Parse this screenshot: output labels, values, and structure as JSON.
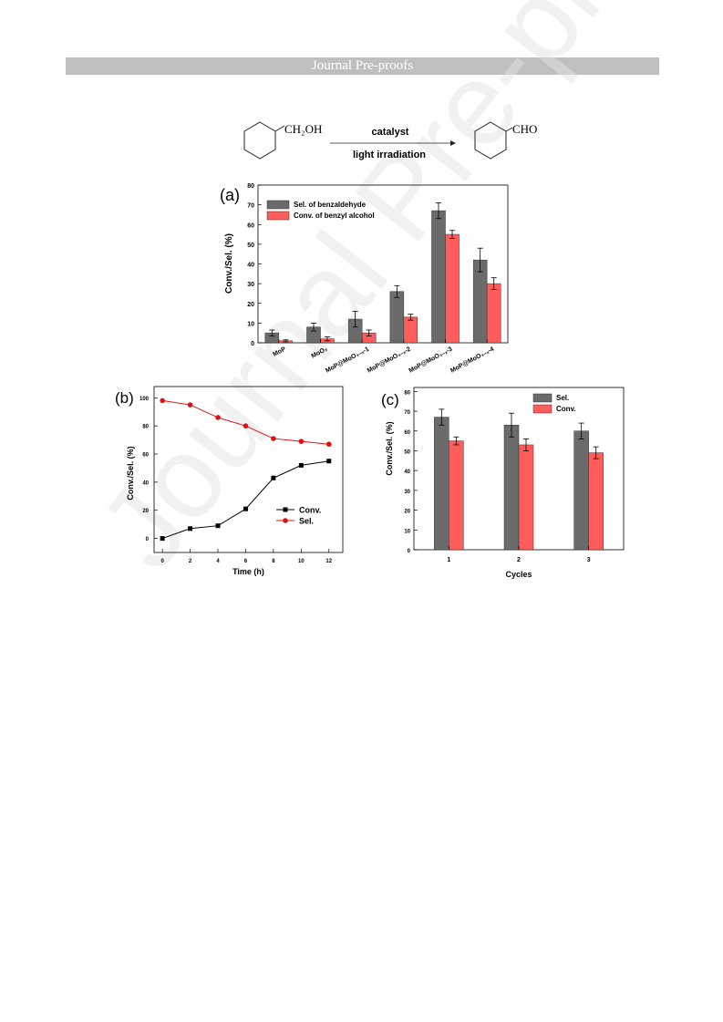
{
  "header": {
    "banner_text": "Journal Pre-proofs"
  },
  "watermark": {
    "text": "Journal Pre-proofs"
  },
  "scheme": {
    "reactant_group": "CH₂OH",
    "product_group": "CHO",
    "arrow_top_label": "catalyst",
    "arrow_bottom_label": "light irradiation"
  },
  "colors": {
    "gray_bar": "#6b6b6b",
    "red_bar": "#ff5c5c",
    "red_line": "#e01010",
    "black_line": "#000000"
  },
  "chart_data": [
    {
      "panel_label": "(a)",
      "type": "bar",
      "categories": [
        "MoP",
        "MoO₃",
        "MoP@MoO₃₋ₓ-1",
        "MoP@MoO₃₋ₓ-2",
        "MoP@MoO₃₋ₓ-3",
        "MoP@MoO₃₋ₓ-4"
      ],
      "series": [
        {
          "name": "Sel. of benzaldehyde",
          "values": [
            5,
            8,
            12,
            26,
            67,
            42
          ],
          "errors": [
            1.5,
            2,
            4,
            3,
            4,
            6
          ]
        },
        {
          "name": "Conv. of benzyl alcohol",
          "values": [
            1,
            2,
            5,
            13,
            55,
            30
          ],
          "errors": [
            0.5,
            1,
            1.5,
            1.5,
            2,
            3
          ]
        }
      ],
      "ylabel": "Conv./Sel. (%)",
      "ylim": [
        0,
        80
      ],
      "yticks": [
        "0",
        "10",
        "20",
        "30",
        "40",
        "50",
        "60",
        "70",
        "80"
      ],
      "legend_position": "top-left"
    },
    {
      "panel_label": "(b)",
      "type": "line",
      "x": [
        0,
        2,
        4,
        6,
        8,
        10,
        12
      ],
      "series": [
        {
          "name": "Conv.",
          "values": [
            0,
            7,
            9,
            21,
            43,
            52,
            55
          ]
        },
        {
          "name": "Sel.",
          "values": [
            98,
            95,
            86,
            80,
            71,
            69,
            67
          ]
        }
      ],
      "xlabel": "Time (h)",
      "ylabel": "Conv./Sel. (%)",
      "xlim": [
        -0.6,
        13
      ],
      "ylim": [
        -10,
        108
      ],
      "xticks": [
        "0",
        "2",
        "4",
        "6",
        "8",
        "10",
        "12"
      ],
      "yticks": [
        "0",
        "20",
        "40",
        "60",
        "80",
        "100"
      ],
      "legend_position": "center-right"
    },
    {
      "panel_label": "(c)",
      "type": "bar",
      "categories": [
        "1",
        "2",
        "3"
      ],
      "series": [
        {
          "name": "Sel.",
          "values": [
            67,
            63,
            60
          ],
          "errors": [
            4,
            6,
            4
          ]
        },
        {
          "name": "Conv.",
          "values": [
            55,
            53,
            49
          ],
          "errors": [
            2,
            3,
            3
          ]
        }
      ],
      "xlabel": "Cycles",
      "ylabel": "Conv./Sel. (%)",
      "ylim": [
        0,
        82
      ],
      "yticks": [
        "0",
        "10",
        "20",
        "30",
        "40",
        "50",
        "60",
        "70",
        "80"
      ],
      "legend_position": "top-left"
    }
  ]
}
